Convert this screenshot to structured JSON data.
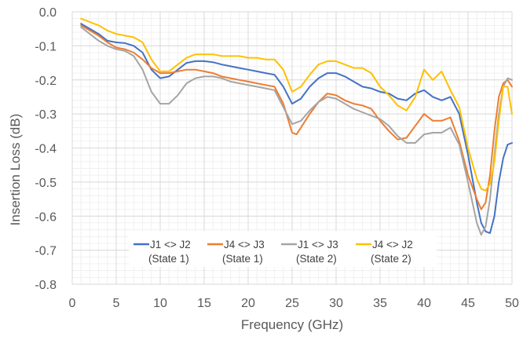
{
  "chart_data": {
    "type": "line",
    "title": "",
    "xlabel": "Frequency (GHz)",
    "ylabel": "Insertion Loss (dB)",
    "xlim": [
      0,
      50
    ],
    "ylim": [
      -0.8,
      0.0
    ],
    "x_ticks": [
      0,
      5,
      10,
      15,
      20,
      25,
      30,
      35,
      40,
      45,
      50
    ],
    "y_ticks": [
      0.0,
      -0.1,
      -0.2,
      -0.3,
      -0.4,
      -0.5,
      -0.6,
      -0.7,
      -0.8
    ],
    "y_tick_labels": [
      "0.0",
      "-0.1",
      "-0.2",
      "-0.3",
      "-0.4",
      "-0.5",
      "-0.6",
      "-0.7",
      "-0.8"
    ],
    "grid": true,
    "minor_grid": true,
    "legend_position": "bottom-center",
    "series": [
      {
        "name": "J1 <> J2",
        "sublabel": "(State 1)",
        "color": "#4472C4",
        "x": [
          1,
          2,
          3,
          4,
          5,
          6,
          7,
          8,
          9,
          10,
          11,
          12,
          13,
          14,
          15,
          16,
          17,
          18,
          19,
          20,
          21,
          22,
          23,
          24,
          25,
          26,
          27,
          28,
          29,
          30,
          31,
          32,
          33,
          34,
          35,
          36,
          37,
          38,
          39,
          40,
          41,
          42,
          43,
          44,
          45,
          46,
          46.5,
          47,
          47.5,
          48,
          48.5,
          49,
          49.5,
          50
        ],
        "values": [
          -0.035,
          -0.05,
          -0.065,
          -0.085,
          -0.09,
          -0.092,
          -0.1,
          -0.12,
          -0.17,
          -0.195,
          -0.19,
          -0.17,
          -0.15,
          -0.145,
          -0.145,
          -0.148,
          -0.155,
          -0.16,
          -0.165,
          -0.17,
          -0.175,
          -0.18,
          -0.185,
          -0.22,
          -0.27,
          -0.255,
          -0.22,
          -0.195,
          -0.18,
          -0.18,
          -0.19,
          -0.205,
          -0.22,
          -0.225,
          -0.235,
          -0.24,
          -0.255,
          -0.26,
          -0.24,
          -0.23,
          -0.25,
          -0.26,
          -0.25,
          -0.3,
          -0.42,
          -0.56,
          -0.62,
          -0.645,
          -0.65,
          -0.6,
          -0.5,
          -0.43,
          -0.39,
          -0.385
        ]
      },
      {
        "name": "J4 <> J3",
        "sublabel": "(State 1)",
        "color": "#ED7D31",
        "x": [
          1,
          2,
          3,
          4,
          5,
          6,
          7,
          8,
          9,
          10,
          11,
          12,
          13,
          14,
          15,
          16,
          17,
          18,
          19,
          20,
          21,
          22,
          23,
          24,
          25,
          25.5,
          26,
          27,
          28,
          29,
          30,
          31,
          32,
          33,
          34,
          35,
          36,
          37,
          38,
          39,
          40,
          41,
          42,
          43,
          44,
          45,
          46,
          46.5,
          47,
          47.5,
          48,
          48.5,
          49,
          49.5,
          50
        ],
        "values": [
          -0.04,
          -0.055,
          -0.07,
          -0.09,
          -0.105,
          -0.11,
          -0.12,
          -0.14,
          -0.165,
          -0.18,
          -0.18,
          -0.175,
          -0.17,
          -0.17,
          -0.175,
          -0.18,
          -0.19,
          -0.195,
          -0.2,
          -0.205,
          -0.21,
          -0.215,
          -0.22,
          -0.27,
          -0.355,
          -0.36,
          -0.34,
          -0.3,
          -0.265,
          -0.24,
          -0.245,
          -0.26,
          -0.27,
          -0.275,
          -0.285,
          -0.32,
          -0.35,
          -0.375,
          -0.37,
          -0.335,
          -0.3,
          -0.32,
          -0.32,
          -0.31,
          -0.38,
          -0.48,
          -0.55,
          -0.58,
          -0.56,
          -0.48,
          -0.35,
          -0.25,
          -0.21,
          -0.2,
          -0.22
        ]
      },
      {
        "name": "J1 <> J3",
        "sublabel": "(State 2)",
        "color": "#A5A5A5",
        "x": [
          1,
          2,
          3,
          4,
          5,
          6,
          7,
          8,
          9,
          10,
          11,
          12,
          13,
          14,
          15,
          16,
          17,
          18,
          19,
          20,
          21,
          22,
          23,
          24,
          25,
          26,
          27,
          28,
          29,
          30,
          31,
          32,
          33,
          34,
          35,
          36,
          37,
          38,
          39,
          40,
          41,
          42,
          43,
          44,
          45,
          46,
          46.5,
          47,
          47.5,
          48,
          48.5,
          49,
          49.5,
          50
        ],
        "values": [
          -0.045,
          -0.065,
          -0.085,
          -0.1,
          -0.11,
          -0.115,
          -0.13,
          -0.17,
          -0.235,
          -0.27,
          -0.27,
          -0.245,
          -0.21,
          -0.195,
          -0.19,
          -0.19,
          -0.195,
          -0.205,
          -0.21,
          -0.215,
          -0.22,
          -0.225,
          -0.23,
          -0.28,
          -0.33,
          -0.32,
          -0.29,
          -0.265,
          -0.25,
          -0.255,
          -0.27,
          -0.285,
          -0.295,
          -0.305,
          -0.315,
          -0.335,
          -0.365,
          -0.385,
          -0.385,
          -0.36,
          -0.355,
          -0.355,
          -0.34,
          -0.39,
          -0.5,
          -0.62,
          -0.655,
          -0.63,
          -0.55,
          -0.42,
          -0.3,
          -0.22,
          -0.195,
          -0.2
        ]
      },
      {
        "name": "J4 <> J2",
        "sublabel": "(State 2)",
        "color": "#FFC000",
        "x": [
          1,
          2,
          3,
          4,
          5,
          6,
          7,
          8,
          9,
          10,
          11,
          12,
          13,
          14,
          15,
          16,
          17,
          18,
          19,
          20,
          21,
          22,
          23,
          24,
          25,
          26,
          27,
          28,
          29,
          30,
          31,
          32,
          33,
          34,
          35,
          36,
          37,
          38,
          39,
          40,
          41,
          42,
          43,
          44,
          45,
          46,
          46.5,
          47,
          47.5,
          48,
          48.5,
          49,
          49.5,
          50
        ],
        "values": [
          -0.02,
          -0.03,
          -0.04,
          -0.055,
          -0.065,
          -0.07,
          -0.075,
          -0.09,
          -0.14,
          -0.175,
          -0.175,
          -0.155,
          -0.135,
          -0.125,
          -0.125,
          -0.125,
          -0.13,
          -0.13,
          -0.13,
          -0.135,
          -0.135,
          -0.14,
          -0.14,
          -0.17,
          -0.235,
          -0.22,
          -0.185,
          -0.155,
          -0.145,
          -0.145,
          -0.155,
          -0.165,
          -0.165,
          -0.18,
          -0.22,
          -0.245,
          -0.275,
          -0.29,
          -0.25,
          -0.17,
          -0.2,
          -0.175,
          -0.23,
          -0.28,
          -0.4,
          -0.49,
          -0.52,
          -0.525,
          -0.505,
          -0.44,
          -0.32,
          -0.22,
          -0.22,
          -0.3
        ]
      }
    ]
  }
}
